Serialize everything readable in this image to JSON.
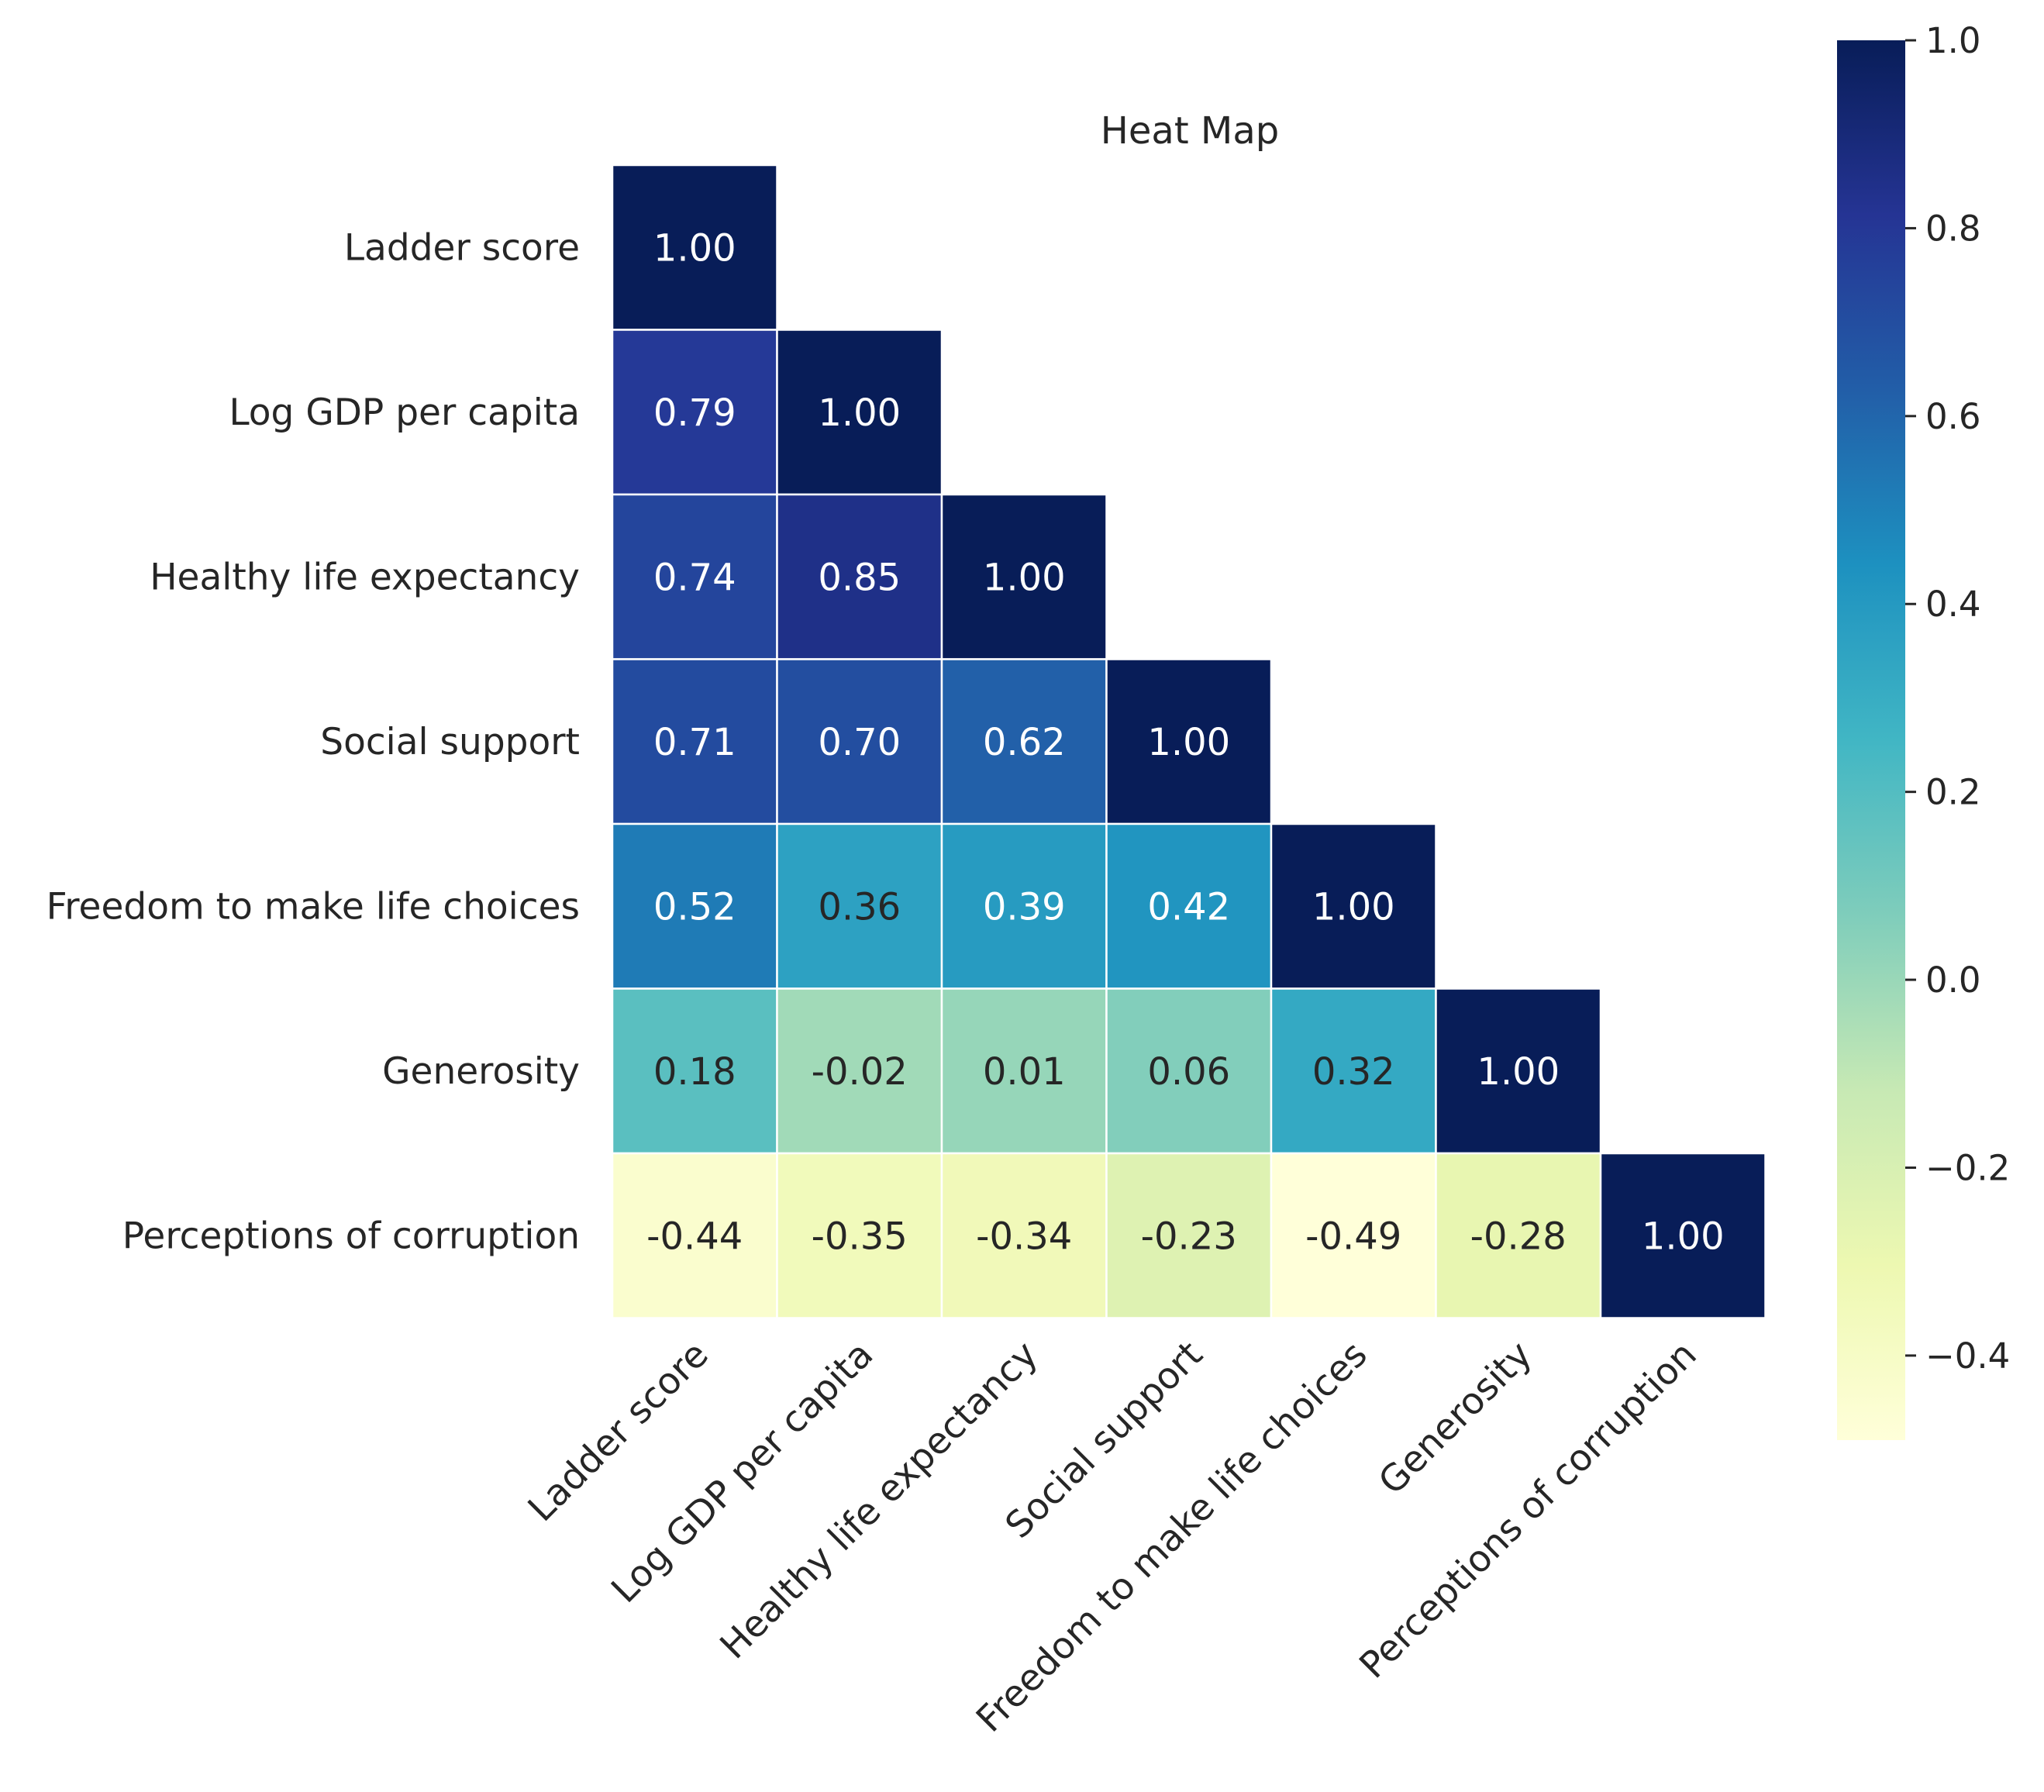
{
  "chart_data": {
    "type": "heatmap",
    "title": "Heat Map",
    "labels": [
      "Ladder score",
      "Log GDP per capita",
      "Healthy life expectancy",
      "Social support",
      "Freedom to make life choices",
      "Generosity",
      "Perceptions of corruption"
    ],
    "mask": "upper-triangle",
    "matrix": [
      [
        1.0
      ],
      [
        0.79,
        1.0
      ],
      [
        0.74,
        0.85,
        1.0
      ],
      [
        0.71,
        0.7,
        0.62,
        1.0
      ],
      [
        0.52,
        0.36,
        0.39,
        0.42,
        1.0
      ],
      [
        0.18,
        -0.02,
        0.01,
        0.06,
        0.32,
        1.0
      ],
      [
        -0.44,
        -0.35,
        -0.34,
        -0.23,
        -0.49,
        -0.28,
        1.0
      ]
    ],
    "value_format": "2 decimals",
    "colormap": "YlGnBu",
    "colorbar": {
      "range": [
        -0.49,
        1.0
      ],
      "ticks": [
        "1.0",
        "0.8",
        "0.6",
        "0.4",
        "0.2",
        "0.0",
        "−0.2",
        "−0.4"
      ]
    }
  }
}
